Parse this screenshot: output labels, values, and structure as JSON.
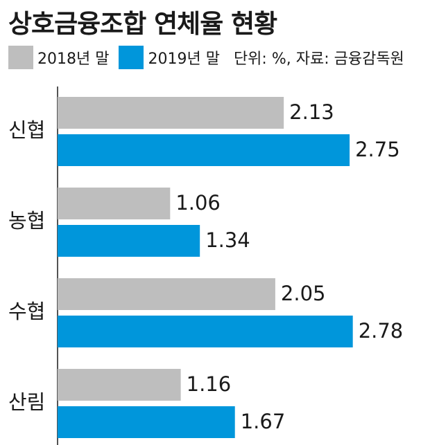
{
  "title": "상호금융조합 연체율 현황",
  "note": "단위: %, 자료: 금융감독원",
  "colors": {
    "series_2018": "#bebebe",
    "series_2019": "#0096db",
    "axis": "#1a1a1a"
  },
  "chart_data": {
    "type": "bar",
    "orientation": "horizontal",
    "categories": [
      "신협",
      "농협",
      "수협",
      "산림"
    ],
    "series": [
      {
        "name": "2018년 말",
        "values": [
          2.13,
          1.06,
          2.05,
          1.16
        ]
      },
      {
        "name": "2019년 말",
        "values": [
          2.75,
          1.34,
          2.78,
          1.67
        ]
      }
    ],
    "value_labels": [
      [
        "2.13",
        "1.06",
        "2.05",
        "1.16"
      ],
      [
        "2.75",
        "1.34",
        "2.78",
        "1.67"
      ]
    ],
    "xlim": [
      0,
      3.2
    ],
    "grid": false,
    "legend_position": "top-left"
  }
}
